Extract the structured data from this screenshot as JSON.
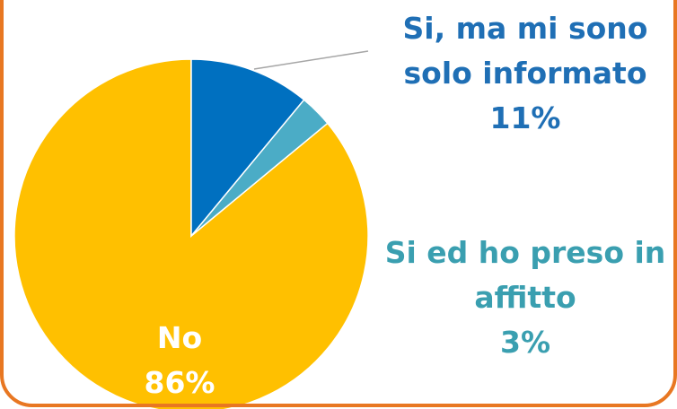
{
  "chart_data": {
    "type": "pie",
    "categories": [
      "Si, ma mi sono solo informato",
      "Si ed ho preso in affitto",
      "No"
    ],
    "values": [
      11,
      3,
      86
    ],
    "value_labels": [
      "11%",
      "3%",
      "86%"
    ],
    "colors": [
      "#0070c0",
      "#4bacc6",
      "#ffc000"
    ],
    "label_colors": [
      "#1f6fb5",
      "#3a9fb0",
      "#ffffff"
    ]
  }
}
